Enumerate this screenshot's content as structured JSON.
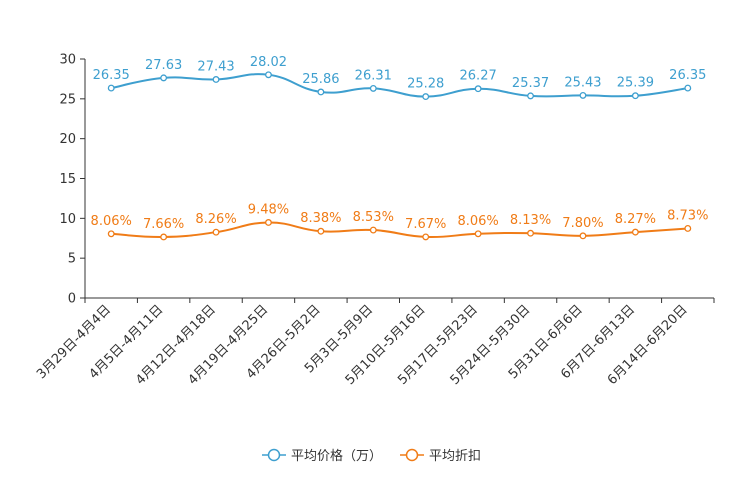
{
  "chart_data": {
    "type": "line",
    "title": "",
    "xlabel": "",
    "ylabel": "",
    "ylim": [
      0,
      30
    ],
    "yticks": [
      0,
      5,
      10,
      15,
      20,
      25,
      30
    ],
    "grid": false,
    "legend_position": "bottom-center",
    "categories": [
      "3月29日-4月4日",
      "4月5日-4月11日",
      "4月12日-4月18日",
      "4月19日-4月25日",
      "4月26日-5月2日",
      "5月3日-5月9日",
      "5月10日-5月16日",
      "5月17日-5月23日",
      "5月24日-5月30日",
      "5月31日-6月6日",
      "6月7日-6月13日",
      "6月14日-6月20日"
    ],
    "series": [
      {
        "name": "平均价格（万）",
        "color": "#3e9fcf",
        "values": [
          26.35,
          27.63,
          27.43,
          28.02,
          25.86,
          26.31,
          25.28,
          26.27,
          25.37,
          25.43,
          25.39,
          26.35
        ],
        "labels": [
          "26.35",
          "27.63",
          "27.43",
          "28.02",
          "25.86",
          "26.31",
          "25.28",
          "26.27",
          "25.37",
          "25.43",
          "25.39",
          "26.35"
        ]
      },
      {
        "name": "平均折扣",
        "color": "#f07c17",
        "values": [
          8.06,
          7.66,
          8.26,
          9.48,
          8.38,
          8.53,
          7.67,
          8.06,
          8.13,
          7.8,
          8.27,
          8.73
        ],
        "labels": [
          "8.06%",
          "7.66%",
          "8.26%",
          "9.48%",
          "8.38%",
          "8.53%",
          "7.67%",
          "8.06%",
          "8.13%",
          "7.80%",
          "8.27%",
          "8.73%"
        ]
      }
    ]
  }
}
